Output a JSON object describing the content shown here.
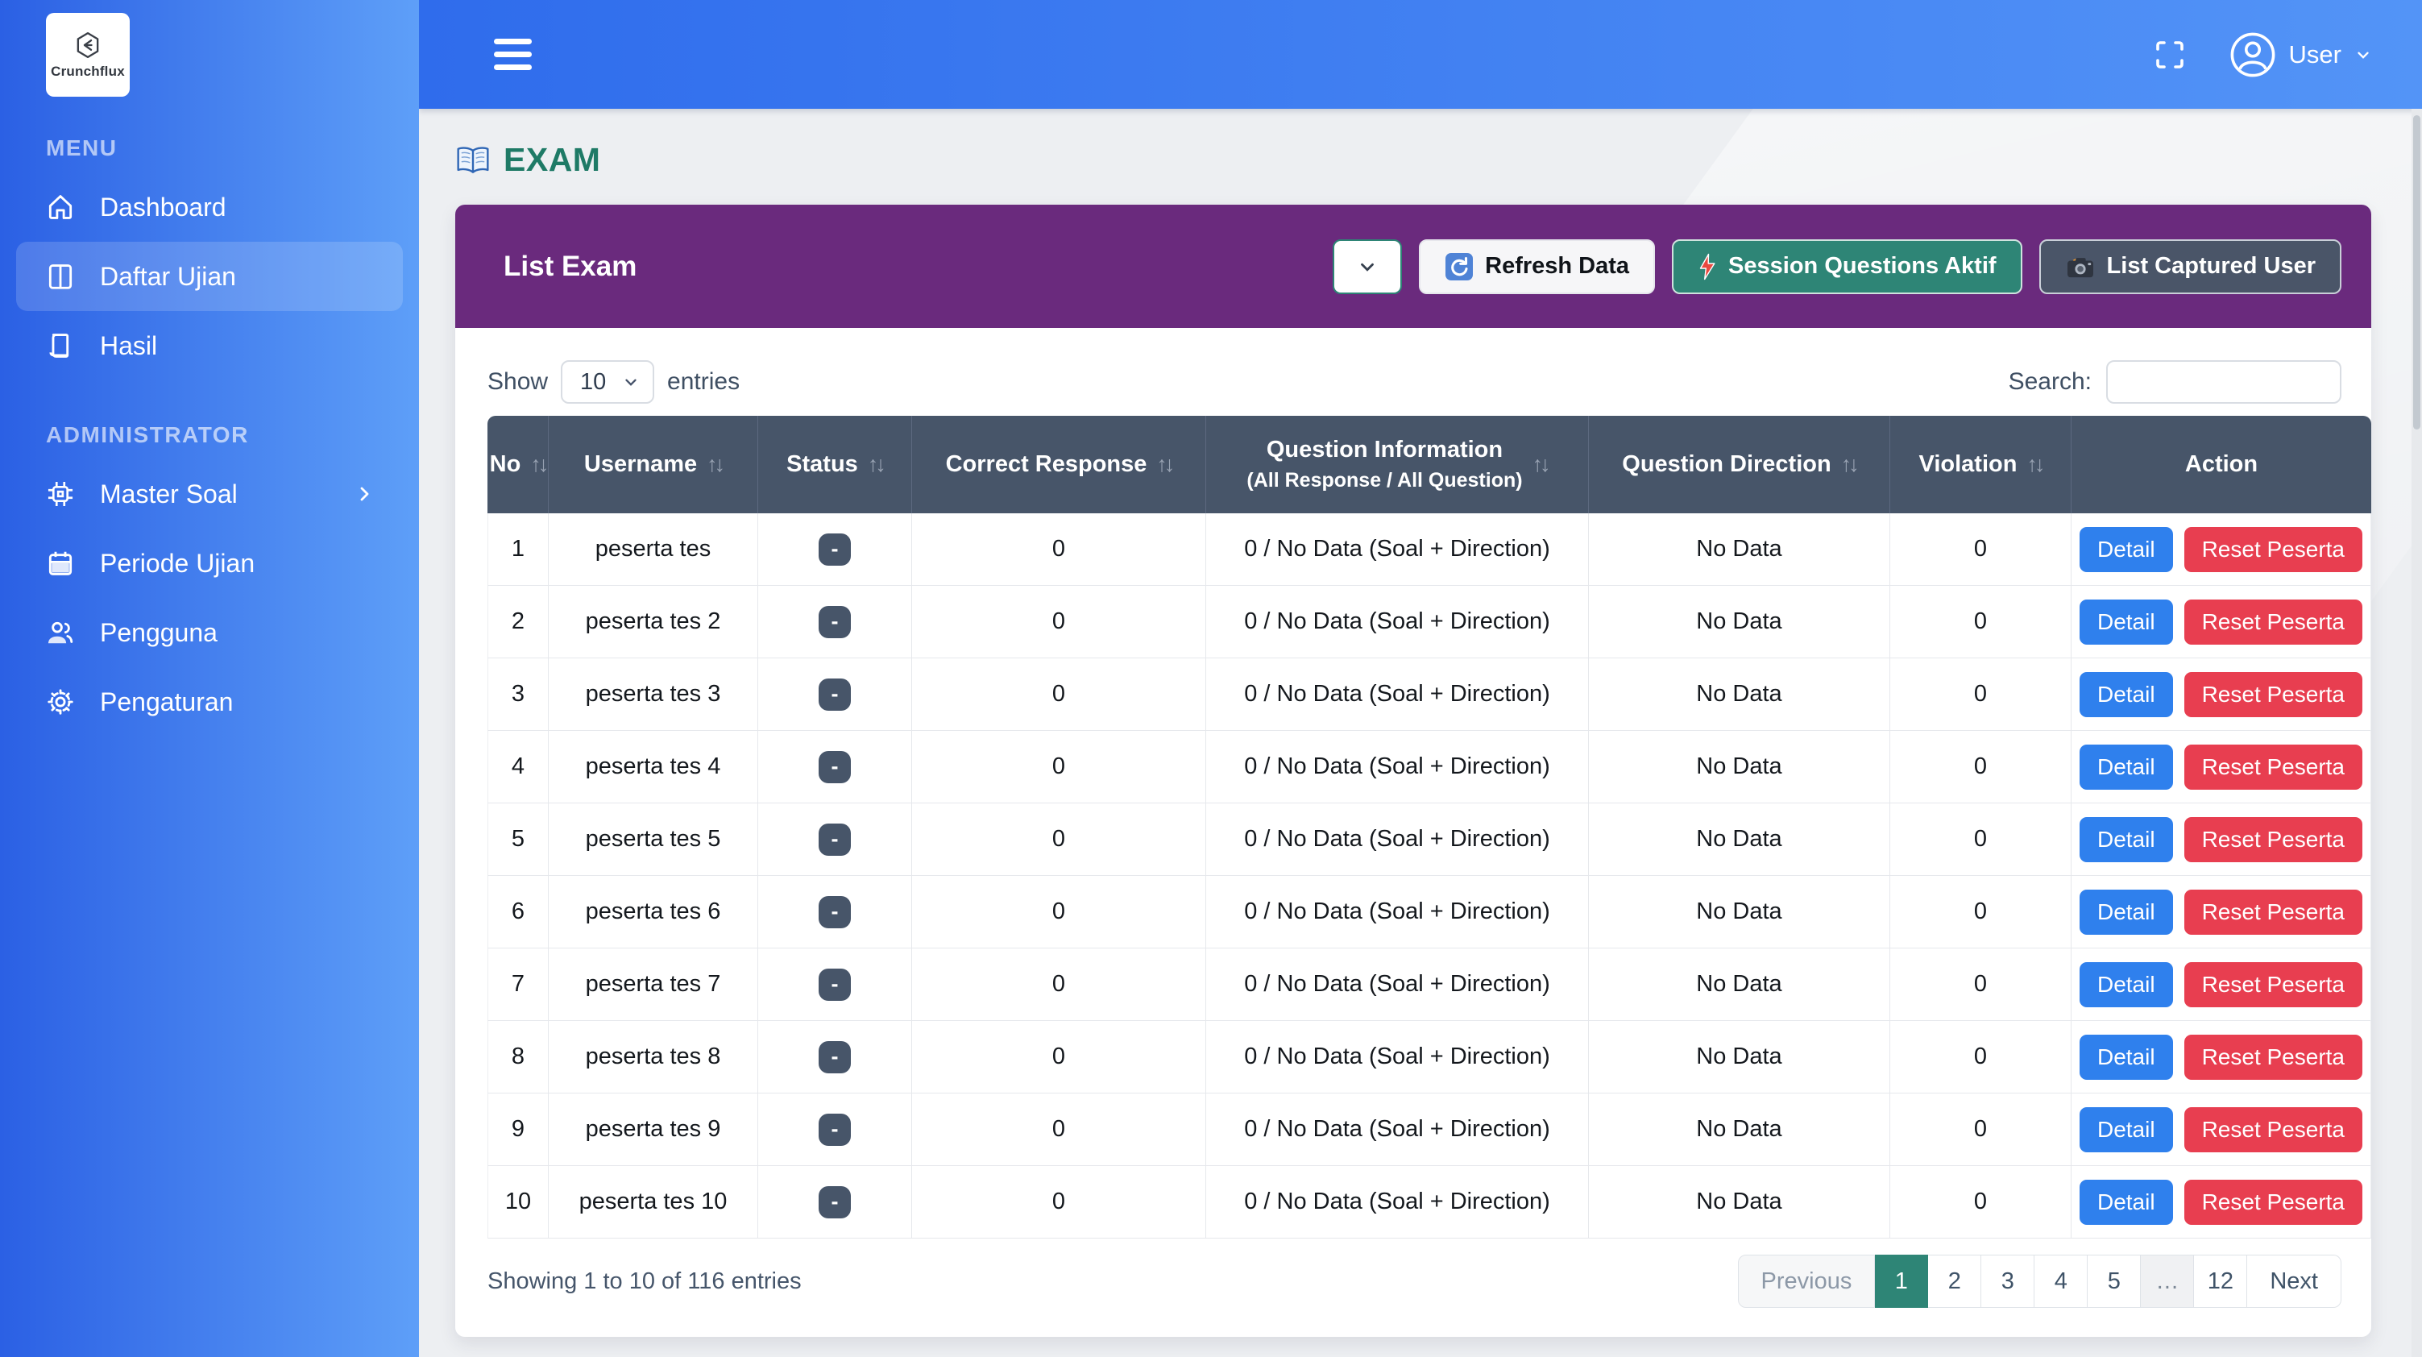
{
  "colors": {
    "page-bg": "#edeff2",
    "sidebar-from": "#2b60e4",
    "sidebar-to": "#5e9ff8",
    "topbar-from": "#2f6cec",
    "topbar-to": "#5394f7",
    "title-teal": "#1e7a66",
    "purple": "#6a2a7d",
    "teal": "#2e8576",
    "slate-header": "#475569",
    "slate-btn": "#4a5568",
    "blue-detail": "#2f80ed",
    "red-reset": "#e83e50"
  },
  "sidebar": {
    "brand": "Crunchflux",
    "sections": [
      {
        "header": "MENU",
        "items": [
          {
            "label": "Dashboard",
            "icon": "home-icon",
            "active": false,
            "chevron": false
          },
          {
            "label": "Daftar Ujian",
            "icon": "book-open-icon",
            "active": true,
            "chevron": false
          },
          {
            "label": "Hasil",
            "icon": "book-icon",
            "active": false,
            "chevron": false
          }
        ]
      },
      {
        "header": "ADMINISTRATOR",
        "items": [
          {
            "label": "Master Soal",
            "icon": "chip-icon",
            "active": false,
            "chevron": true
          },
          {
            "label": "Periode Ujian",
            "icon": "calendar-icon",
            "active": false,
            "chevron": false
          },
          {
            "label": "Pengguna",
            "icon": "users-icon",
            "active": false,
            "chevron": false
          },
          {
            "label": "Pengaturan",
            "icon": "gear-icon",
            "active": false,
            "chevron": false
          }
        ]
      }
    ]
  },
  "topbar": {
    "user_label": "User"
  },
  "page_title": {
    "icon": "open-book-icon",
    "text": "EXAM"
  },
  "panel": {
    "title": "List Exam",
    "toolbar": [
      {
        "id": "panel-collapse",
        "icon": "chevron-down-icon",
        "label": "",
        "style": "white-outline"
      },
      {
        "id": "refresh-data",
        "icon": "refresh-icon",
        "label": "Refresh Data",
        "style": "light"
      },
      {
        "id": "session-questions",
        "icon": "lightning-icon",
        "label": "Session Questions Aktif",
        "style": "teal"
      },
      {
        "id": "list-captured-user",
        "icon": "camera-icon",
        "label": "List Captured User",
        "style": "dark"
      }
    ]
  },
  "list_controls": {
    "show_label": "Show",
    "page_size": "10",
    "entries_label": "entries",
    "search_label": "Search:",
    "search_value": ""
  },
  "table": {
    "columns": [
      {
        "label": "No",
        "sortable": true
      },
      {
        "label": "Username",
        "sortable": true
      },
      {
        "label": "Status",
        "sortable": true
      },
      {
        "label": "Correct Response",
        "sortable": true
      },
      {
        "label": "Question Information",
        "sublabel": "(All Response / All Question)",
        "sortable": true
      },
      {
        "label": "Question Direction",
        "sortable": true
      },
      {
        "label": "Violation",
        "sortable": true
      },
      {
        "label": "Action",
        "sortable": false
      }
    ],
    "row_actions": {
      "detail": "Detail",
      "reset": "Reset Peserta"
    },
    "rows": [
      {
        "no": "1",
        "username": "peserta tes",
        "status": "-",
        "correct_response": "0",
        "question_information": "0 / No Data (Soal + Direction)",
        "question_direction": "No Data",
        "violation": "0"
      },
      {
        "no": "2",
        "username": "peserta tes 2",
        "status": "-",
        "correct_response": "0",
        "question_information": "0 / No Data (Soal + Direction)",
        "question_direction": "No Data",
        "violation": "0"
      },
      {
        "no": "3",
        "username": "peserta tes 3",
        "status": "-",
        "correct_response": "0",
        "question_information": "0 / No Data (Soal + Direction)",
        "question_direction": "No Data",
        "violation": "0"
      },
      {
        "no": "4",
        "username": "peserta tes 4",
        "status": "-",
        "correct_response": "0",
        "question_information": "0 / No Data (Soal + Direction)",
        "question_direction": "No Data",
        "violation": "0"
      },
      {
        "no": "5",
        "username": "peserta tes 5",
        "status": "-",
        "correct_response": "0",
        "question_information": "0 / No Data (Soal + Direction)",
        "question_direction": "No Data",
        "violation": "0"
      },
      {
        "no": "6",
        "username": "peserta tes 6",
        "status": "-",
        "correct_response": "0",
        "question_information": "0 / No Data (Soal + Direction)",
        "question_direction": "No Data",
        "violation": "0"
      },
      {
        "no": "7",
        "username": "peserta tes 7",
        "status": "-",
        "correct_response": "0",
        "question_information": "0 / No Data (Soal + Direction)",
        "question_direction": "No Data",
        "violation": "0"
      },
      {
        "no": "8",
        "username": "peserta tes 8",
        "status": "-",
        "correct_response": "0",
        "question_information": "0 / No Data (Soal + Direction)",
        "question_direction": "No Data",
        "violation": "0"
      },
      {
        "no": "9",
        "username": "peserta tes 9",
        "status": "-",
        "correct_response": "0",
        "question_information": "0 / No Data (Soal + Direction)",
        "question_direction": "No Data",
        "violation": "0"
      },
      {
        "no": "10",
        "username": "peserta tes 10",
        "status": "-",
        "correct_response": "0",
        "question_information": "0 / No Data (Soal + Direction)",
        "question_direction": "No Data",
        "violation": "0"
      }
    ]
  },
  "footer": {
    "summary": "Showing 1 to 10 of 116 entries",
    "pagination": [
      {
        "label": "Previous",
        "state": "disabled"
      },
      {
        "label": "1",
        "state": "active"
      },
      {
        "label": "2",
        "state": "normal"
      },
      {
        "label": "3",
        "state": "normal"
      },
      {
        "label": "4",
        "state": "normal"
      },
      {
        "label": "5",
        "state": "normal"
      },
      {
        "label": "…",
        "state": "ellipsis"
      },
      {
        "label": "12",
        "state": "normal"
      },
      {
        "label": "Next",
        "state": "normal"
      }
    ]
  }
}
